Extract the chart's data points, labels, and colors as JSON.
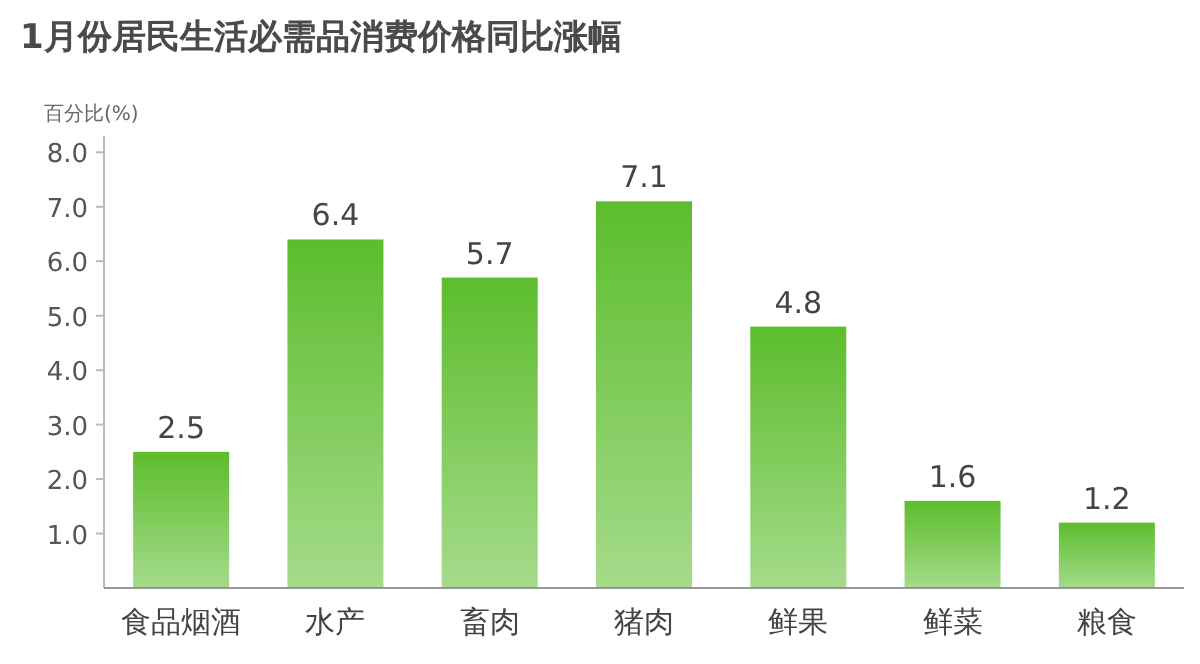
{
  "chart_data": {
    "type": "bar",
    "title": "1月份居民生活必需品消费价格同比涨幅",
    "ylabel": "百分比(%)",
    "categories": [
      "食品烟酒",
      "水产",
      "畜肉",
      "猪肉",
      "鲜果",
      "鲜菜",
      "粮食"
    ],
    "values": [
      2.5,
      6.4,
      5.7,
      7.1,
      4.8,
      1.6,
      1.2
    ],
    "color": "#5cbd2c",
    "ylim": [
      0,
      8.3
    ],
    "yticks": [
      {
        "value": 1,
        "label": "1.0"
      },
      {
        "value": 2,
        "label": "2.0"
      },
      {
        "value": 3,
        "label": "3.0"
      },
      {
        "value": 4,
        "label": "4.0"
      },
      {
        "value": 5,
        "label": "5.0"
      },
      {
        "value": 6,
        "label": "6.0"
      },
      {
        "value": 7,
        "label": "7.0"
      },
      {
        "value": 8,
        "label": "8.0"
      }
    ],
    "data_labels": true
  }
}
